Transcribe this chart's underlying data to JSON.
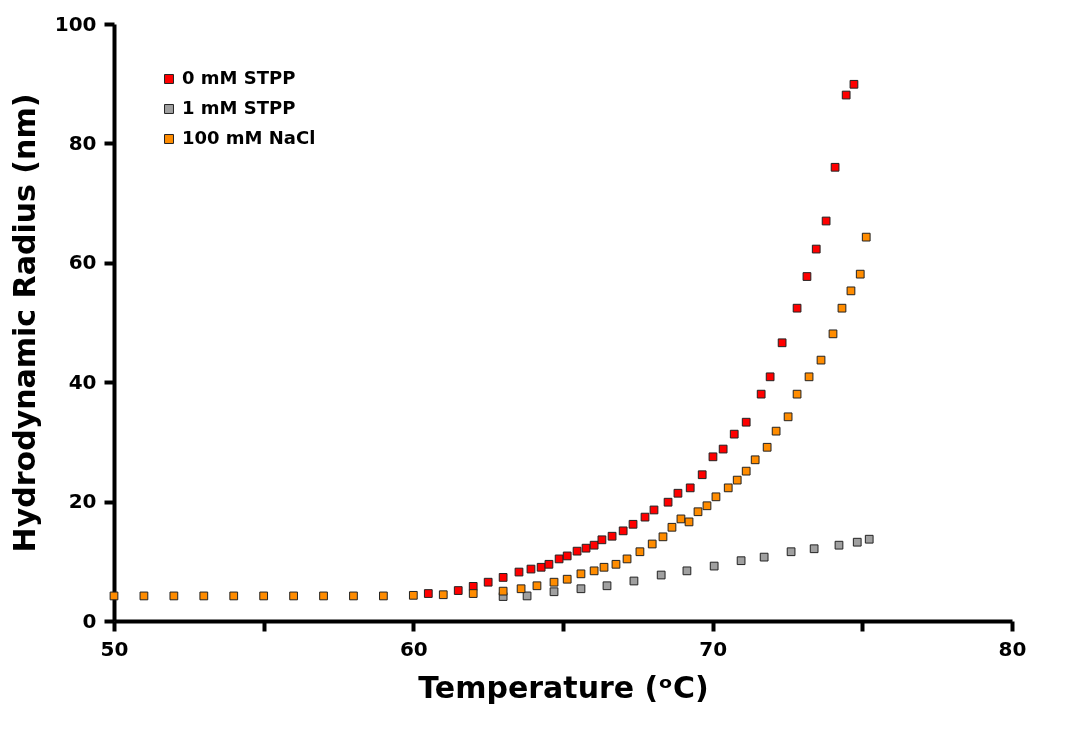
{
  "chart_data": {
    "type": "scatter",
    "xlabel": "Temperature (ᵒC)",
    "ylabel": "Hydrodynamic Radius (nm)",
    "xlim": [
      50,
      80
    ],
    "ylim": [
      0,
      100
    ],
    "xticks": [
      50,
      {
        "value": 55,
        "label": null
      },
      60,
      {
        "value": 65,
        "label": null
      },
      70,
      {
        "value": 75,
        "label": null
      },
      80
    ],
    "yticks": [
      0,
      20,
      40,
      60,
      80,
      100
    ],
    "marker": "square",
    "legend": "top left",
    "series": [
      {
        "name": "0 mM STPP",
        "color": "#ff0000",
        "x": [
          60.5,
          61.5,
          62,
          62.5,
          63,
          63.53,
          63.93,
          64.27,
          64.53,
          64.87,
          65.14,
          65.47,
          65.77,
          66.04,
          66.3,
          66.64,
          67.01,
          67.34,
          67.74,
          68.04,
          68.51,
          68.84,
          69.25,
          69.65,
          70.01,
          70.35,
          70.72,
          71.12,
          71.62,
          71.92,
          72.32,
          72.82,
          73.15,
          73.46,
          73.79,
          74.09,
          74.46,
          74.72
        ],
        "values": [
          4.6,
          5.1,
          5.8,
          6.5,
          7.3,
          8.2,
          8.7,
          9.0,
          9.5,
          10.4,
          10.9,
          11.7,
          12.2,
          12.7,
          13.6,
          14.2,
          15.1,
          16.2,
          17.4,
          18.6,
          19.9,
          21.4,
          22.3,
          24.5,
          27.5,
          28.8,
          31.3,
          33.3,
          38.0,
          40.9,
          46.6,
          52.4,
          57.7,
          62.3,
          67.0,
          76.0,
          88.1,
          89.9
        ]
      },
      {
        "name": "1 mM STPP",
        "color": "#a0a0a0",
        "x": [
          63,
          63.8,
          64.7,
          65.6,
          66.47,
          67.37,
          68.28,
          69.14,
          70.05,
          70.95,
          71.72,
          72.62,
          73.39,
          74.22,
          74.83,
          75.23
        ],
        "values": [
          4.1,
          4.2,
          4.9,
          5.4,
          5.9,
          6.7,
          7.7,
          8.4,
          9.2,
          10.1,
          10.7,
          11.6,
          12.1,
          12.7,
          13.2,
          13.7
        ]
      },
      {
        "name": "100 mM NaCl",
        "color": "#ff8c00",
        "x": [
          50,
          51,
          52,
          53,
          54,
          55,
          56,
          57,
          58,
          59,
          60,
          61,
          62,
          63,
          63.6,
          64.13,
          64.7,
          65.14,
          65.6,
          66.04,
          66.37,
          66.77,
          67.14,
          67.57,
          67.98,
          68.34,
          68.64,
          68.94,
          69.21,
          69.51,
          69.81,
          70.11,
          70.52,
          70.82,
          71.12,
          71.42,
          71.82,
          72.12,
          72.52,
          72.82,
          73.22,
          73.62,
          74.02,
          74.32,
          74.62,
          74.93,
          75.13
        ],
        "values": [
          4.2,
          4.2,
          4.2,
          4.2,
          4.2,
          4.2,
          4.2,
          4.2,
          4.2,
          4.2,
          4.3,
          4.4,
          4.6,
          5.0,
          5.4,
          5.9,
          6.5,
          7.0,
          7.9,
          8.4,
          9.0,
          9.5,
          10.4,
          11.6,
          12.9,
          14.1,
          15.7,
          17.1,
          16.6,
          18.3,
          19.3,
          20.8,
          22.3,
          23.6,
          25.1,
          27.0,
          29.1,
          31.8,
          34.2,
          38.0,
          40.9,
          43.7,
          48.1,
          52.4,
          55.3,
          58.1,
          64.3
        ]
      }
    ]
  }
}
